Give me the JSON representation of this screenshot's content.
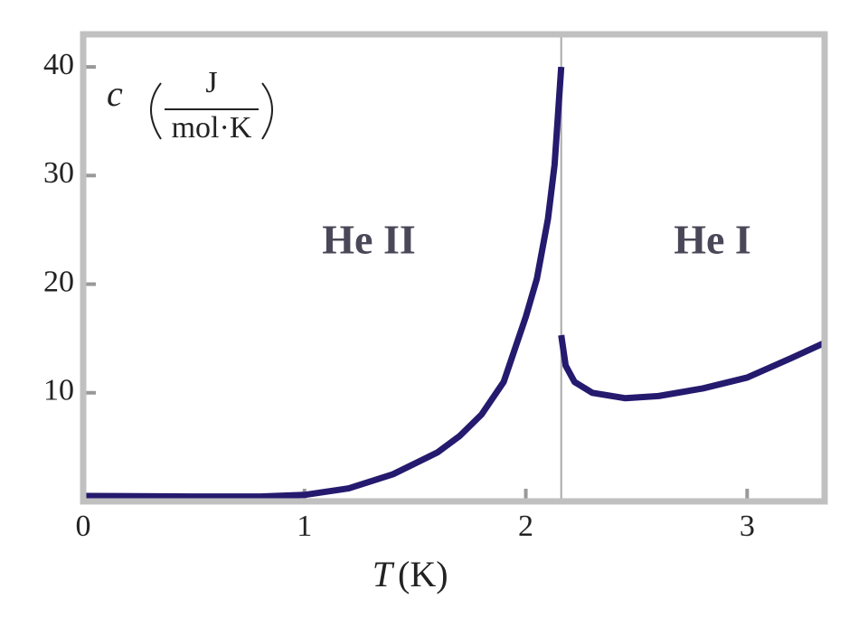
{
  "chart_data": {
    "type": "line",
    "x_label": {
      "symbol": "T",
      "unit": "(K)"
    },
    "y_label": {
      "symbol": "c",
      "numerator": "J",
      "denominator": "mol·K"
    },
    "annotations": [
      "He II",
      "He I"
    ],
    "xlim": [
      0,
      3.35
    ],
    "ylim": [
      0,
      43
    ],
    "xticks": [
      0,
      1,
      2,
      3
    ],
    "yticks": [
      10,
      20,
      30,
      40
    ],
    "vlines": [
      2.16
    ],
    "series": [
      {
        "color": "#241a6e",
        "x": [
          0,
          0.5,
          0.8,
          1.0,
          1.2,
          1.4,
          1.6,
          1.7,
          1.8,
          1.9,
          2.0,
          2.05,
          2.1,
          2.13,
          2.15,
          2.16
        ],
        "values": [
          0.5,
          0.45,
          0.45,
          0.6,
          1.2,
          2.5,
          4.5,
          6,
          8,
          11,
          17,
          20.5,
          26,
          31,
          37,
          40
        ]
      },
      {
        "color": "#241a6e",
        "x": [
          2.16,
          2.18,
          2.22,
          2.3,
          2.45,
          2.6,
          2.8,
          3.0,
          3.2,
          3.35
        ],
        "values": [
          15.3,
          12.5,
          11,
          10,
          9.5,
          9.7,
          10.4,
          11.4,
          13.2,
          14.6
        ]
      }
    ]
  }
}
